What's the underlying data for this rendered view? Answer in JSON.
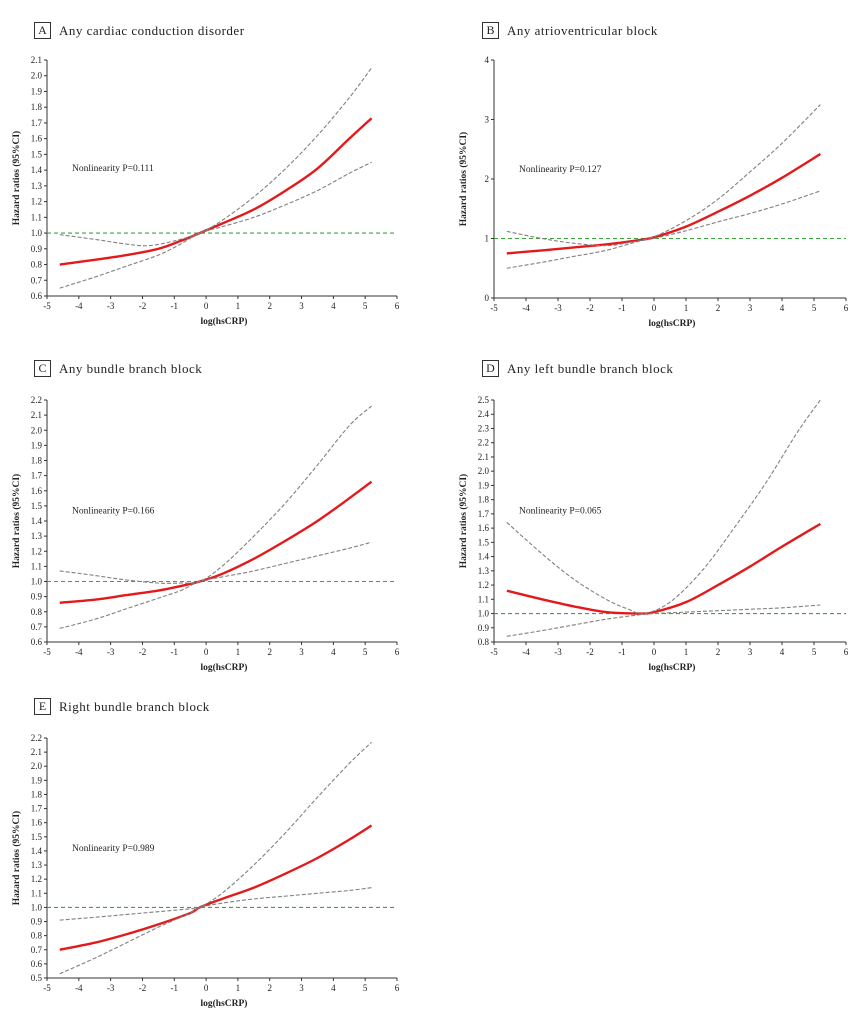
{
  "chart_data": [
    {
      "type": "line",
      "panel_letter": "A",
      "title": "Any cardiac conduction disorder",
      "xlabel": "log(hsCRP)",
      "ylabel": "Hazard ratios (95%CI)",
      "xlim": [
        -5,
        6
      ],
      "ylim": [
        0.6,
        2.1
      ],
      "xticks": [
        -5,
        -4,
        -3,
        -2,
        -1,
        0,
        1,
        2,
        3,
        4,
        5,
        6
      ],
      "yticks": [
        0.6,
        0.7,
        0.8,
        0.9,
        1.0,
        1.1,
        1.2,
        1.3,
        1.4,
        1.5,
        1.6,
        1.7,
        1.8,
        1.9,
        2.0,
        2.1
      ],
      "ytick_labels": [
        "0.6",
        "0.7",
        "0.8",
        "0.9",
        "1.0",
        "1.1",
        "1.2",
        "1.3",
        "1.4",
        "1.5",
        "1.6",
        "1.7",
        "1.8",
        "1.9",
        "2.0",
        "2.1"
      ],
      "annotation": "Nonlinearity P=0.111",
      "reference_line": 1.0,
      "series": [
        {
          "name": "HR",
          "color": "#e31a1c",
          "x": [
            -4.6,
            -3.5,
            -2.5,
            -1.5,
            -0.8,
            -0.2,
            0.5,
            1.5,
            2.5,
            3.5,
            4.5,
            5.2
          ],
          "y": [
            0.8,
            0.83,
            0.86,
            0.9,
            0.95,
            1.0,
            1.06,
            1.15,
            1.27,
            1.41,
            1.6,
            1.73
          ]
        },
        {
          "name": "Upper 95% CI",
          "color": "#808080",
          "x": [
            -4.6,
            -3.5,
            -2.5,
            -1.8,
            -1.0,
            -0.2,
            0.5,
            1.5,
            2.5,
            3.5,
            4.5,
            5.2
          ],
          "y": [
            0.99,
            0.96,
            0.93,
            0.92,
            0.95,
            1.0,
            1.08,
            1.23,
            1.41,
            1.62,
            1.86,
            2.05
          ]
        },
        {
          "name": "Lower 95% CI",
          "color": "#808080",
          "x": [
            -4.6,
            -3.5,
            -2.5,
            -1.5,
            -0.8,
            -0.2,
            0.5,
            1.5,
            2.5,
            3.5,
            4.5,
            5.2
          ],
          "y": [
            0.65,
            0.72,
            0.79,
            0.86,
            0.93,
            1.0,
            1.04,
            1.1,
            1.18,
            1.27,
            1.38,
            1.45
          ]
        }
      ]
    },
    {
      "type": "line",
      "panel_letter": "B",
      "title": "Any atrioventricular block",
      "xlabel": "log(hsCRP)",
      "ylabel": "Hazard ratios (95%CI)",
      "xlim": [
        -5,
        6
      ],
      "ylim": [
        0,
        4
      ],
      "xticks": [
        -5,
        -4,
        -3,
        -2,
        -1,
        0,
        1,
        2,
        3,
        4,
        5,
        6
      ],
      "yticks": [
        0,
        1,
        2,
        3,
        4
      ],
      "ytick_labels": [
        "0",
        "1",
        "2",
        "3",
        "4"
      ],
      "annotation": "Nonlinearity P=0.127",
      "reference_line": 1.0,
      "series": [
        {
          "name": "HR",
          "color": "#e31a1c",
          "x": [
            -4.6,
            -3.5,
            -2.5,
            -1.5,
            -0.5,
            0,
            1,
            2,
            3,
            4,
            5.2
          ],
          "y": [
            0.75,
            0.8,
            0.85,
            0.9,
            0.97,
            1.02,
            1.2,
            1.45,
            1.72,
            2.02,
            2.42
          ]
        },
        {
          "name": "Upper 95% CI",
          "color": "#808080",
          "x": [
            -4.6,
            -3.5,
            -2.5,
            -1.5,
            -0.8,
            0,
            1,
            2,
            3,
            4,
            5.2
          ],
          "y": [
            1.12,
            1.0,
            0.92,
            0.88,
            0.93,
            1.03,
            1.3,
            1.66,
            2.12,
            2.6,
            3.25
          ]
        },
        {
          "name": "Lower 95% CI",
          "color": "#808080",
          "x": [
            -4.6,
            -3.5,
            -2.5,
            -1.5,
            -0.5,
            0,
            1,
            2,
            3,
            4,
            5.2
          ],
          "y": [
            0.5,
            0.6,
            0.7,
            0.8,
            0.95,
            1.0,
            1.13,
            1.28,
            1.42,
            1.58,
            1.8
          ]
        }
      ]
    },
    {
      "type": "line",
      "panel_letter": "C",
      "title": "Any bundle branch block",
      "xlabel": "log(hsCRP)",
      "ylabel": "Hazard ratios (95%CI)",
      "xlim": [
        -5,
        6
      ],
      "ylim": [
        0.6,
        2.2
      ],
      "xticks": [
        -5,
        -4,
        -3,
        -2,
        -1,
        0,
        1,
        2,
        3,
        4,
        5,
        6
      ],
      "yticks": [
        0.6,
        0.7,
        0.8,
        0.9,
        1.0,
        1.1,
        1.2,
        1.3,
        1.4,
        1.5,
        1.6,
        1.7,
        1.8,
        1.9,
        2.0,
        2.1,
        2.2
      ],
      "ytick_labels": [
        "0.6",
        "0.7",
        "0.8",
        "0.9",
        "1.0",
        "1.1",
        "1.2",
        "1.3",
        "1.4",
        "1.5",
        "1.6",
        "1.7",
        "1.8",
        "1.9",
        "2.0",
        "2.1",
        "2.2"
      ],
      "annotation": "Nonlinearity P=0.166",
      "reference_line": 1.0,
      "series": [
        {
          "name": "HR",
          "color": "#e31a1c",
          "x": [
            -4.6,
            -3.5,
            -2.5,
            -1.5,
            -0.8,
            -0.2,
            0.5,
            1.5,
            2.5,
            3.5,
            4.5,
            5.2
          ],
          "y": [
            0.86,
            0.88,
            0.91,
            0.94,
            0.97,
            1.0,
            1.05,
            1.15,
            1.27,
            1.4,
            1.55,
            1.66
          ]
        },
        {
          "name": "Upper 95% CI",
          "color": "#808080",
          "x": [
            -4.6,
            -3.5,
            -2.5,
            -1.5,
            -0.8,
            -0.2,
            0.5,
            1.5,
            2.5,
            3.5,
            4.5,
            5.2
          ],
          "y": [
            1.07,
            1.04,
            1.01,
            0.99,
            0.99,
            1.0,
            1.1,
            1.3,
            1.52,
            1.77,
            2.03,
            2.16
          ]
        },
        {
          "name": "Lower 95% CI",
          "color": "#808080",
          "x": [
            -4.6,
            -3.5,
            -2.5,
            -1.5,
            -0.8,
            -0.2,
            0.5,
            1.5,
            2.5,
            3.5,
            4.5,
            5.2
          ],
          "y": [
            0.69,
            0.75,
            0.82,
            0.89,
            0.94,
            1.0,
            1.03,
            1.07,
            1.12,
            1.17,
            1.22,
            1.26
          ]
        }
      ]
    },
    {
      "type": "line",
      "panel_letter": "D",
      "title": "Any left bundle branch block",
      "xlabel": "log(hsCRP)",
      "ylabel": "Hazard ratios (95%CI)",
      "xlim": [
        -5,
        6
      ],
      "ylim": [
        0.8,
        2.5
      ],
      "xticks": [
        -5,
        -4,
        -3,
        -2,
        -1,
        0,
        1,
        2,
        3,
        4,
        5,
        6
      ],
      "yticks": [
        0.8,
        0.9,
        1.0,
        1.1,
        1.2,
        1.3,
        1.4,
        1.5,
        1.6,
        1.7,
        1.8,
        1.9,
        2.0,
        2.1,
        2.2,
        2.3,
        2.4,
        2.5
      ],
      "ytick_labels": [
        "0.8",
        "0.9",
        "1.0",
        "1.1",
        "1.2",
        "1.3",
        "1.4",
        "1.5",
        "1.6",
        "1.7",
        "1.8",
        "1.9",
        "2.0",
        "2.1",
        "2.2",
        "2.3",
        "2.4",
        "2.5"
      ],
      "annotation": "Nonlinearity P=0.065",
      "reference_line": 1.0,
      "series": [
        {
          "name": "HR",
          "color": "#e31a1c",
          "x": [
            -4.6,
            -3.5,
            -2.5,
            -1.5,
            -0.5,
            0,
            1,
            2,
            3,
            4,
            5.2
          ],
          "y": [
            1.16,
            1.1,
            1.05,
            1.01,
            1.0,
            1.01,
            1.08,
            1.2,
            1.33,
            1.47,
            1.63
          ]
        },
        {
          "name": "Upper 95% CI",
          "color": "#808080",
          "x": [
            -4.6,
            -3.5,
            -2.5,
            -1.5,
            -0.8,
            -0.3,
            0.5,
            1.5,
            2.5,
            3.5,
            4.5,
            5.2
          ],
          "y": [
            1.64,
            1.42,
            1.24,
            1.1,
            1.03,
            1.0,
            1.08,
            1.3,
            1.6,
            1.92,
            2.28,
            2.5
          ]
        },
        {
          "name": "Lower 95% CI",
          "color": "#808080",
          "x": [
            -4.6,
            -3.5,
            -2.5,
            -1.5,
            -0.5,
            0,
            1,
            2,
            3,
            4,
            5.2
          ],
          "y": [
            0.84,
            0.88,
            0.92,
            0.96,
            0.99,
            1.0,
            1.01,
            1.02,
            1.03,
            1.04,
            1.06
          ]
        }
      ]
    },
    {
      "type": "line",
      "panel_letter": "E",
      "title": "Right bundle branch block",
      "xlabel": "log(hsCRP)",
      "ylabel": "Hazard ratios (95%CI)",
      "xlim": [
        -5,
        6
      ],
      "ylim": [
        0.5,
        2.2
      ],
      "xticks": [
        -5,
        -4,
        -3,
        -2,
        -1,
        0,
        1,
        2,
        3,
        4,
        5,
        6
      ],
      "yticks": [
        0.5,
        0.6,
        0.7,
        0.8,
        0.9,
        1.0,
        1.1,
        1.2,
        1.3,
        1.4,
        1.5,
        1.6,
        1.7,
        1.8,
        1.9,
        2.0,
        2.1,
        2.2
      ],
      "ytick_labels": [
        "0.5",
        "0.6",
        "0.7",
        "0.8",
        "0.9",
        "1.0",
        "1.1",
        "1.2",
        "1.3",
        "1.4",
        "1.5",
        "1.6",
        "1.7",
        "1.8",
        "1.9",
        "2.0",
        "2.1",
        "2.2"
      ],
      "annotation": "Nonlinearity P=0.989",
      "reference_line": 1.0,
      "series": [
        {
          "name": "HR",
          "color": "#e31a1c",
          "x": [
            -4.6,
            -3.5,
            -2.5,
            -1.5,
            -0.5,
            -0.2,
            0.5,
            1.5,
            2.5,
            3.5,
            4.5,
            5.2
          ],
          "y": [
            0.7,
            0.75,
            0.81,
            0.88,
            0.96,
            1.0,
            1.06,
            1.14,
            1.24,
            1.35,
            1.48,
            1.58
          ]
        },
        {
          "name": "Upper 95% CI",
          "color": "#808080",
          "x": [
            -4.6,
            -3.5,
            -2.5,
            -1.5,
            -0.5,
            -0.2,
            0.5,
            1.5,
            2.5,
            3.5,
            4.5,
            5.2
          ],
          "y": [
            0.91,
            0.93,
            0.95,
            0.97,
            0.99,
            1.0,
            1.1,
            1.3,
            1.53,
            1.78,
            2.02,
            2.17
          ]
        },
        {
          "name": "Lower 95% CI",
          "color": "#808080",
          "x": [
            -4.6,
            -3.5,
            -2.5,
            -1.5,
            -0.5,
            -0.2,
            0.5,
            1.5,
            2.5,
            3.5,
            4.5,
            5.2
          ],
          "y": [
            0.53,
            0.64,
            0.75,
            0.86,
            0.96,
            1.0,
            1.03,
            1.06,
            1.08,
            1.1,
            1.12,
            1.14
          ]
        }
      ]
    }
  ]
}
